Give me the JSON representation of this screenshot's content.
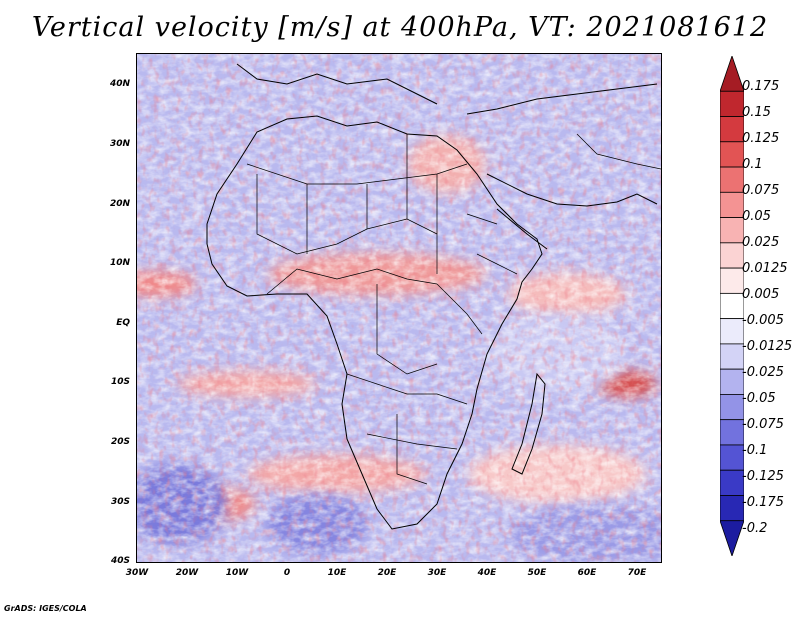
{
  "title": "Vertical velocity [m/s] at 400hPa, VT: 2021081612",
  "footer": "GrADS: IGES/COLA",
  "map": {
    "lat_range": [
      -40,
      45
    ],
    "lon_range": [
      -30,
      75
    ],
    "lat_ticks": [
      "40N",
      "30N",
      "20N",
      "10N",
      "EQ",
      "10S",
      "20S",
      "30S",
      "40S"
    ],
    "lon_ticks": [
      "30W",
      "20W",
      "10W",
      "0",
      "10E",
      "20E",
      "30E",
      "40E",
      "50E",
      "60E",
      "70E"
    ]
  },
  "colorbar": {
    "labels": [
      "0.175",
      "0.15",
      "0.125",
      "0.1",
      "0.075",
      "0.05",
      "0.025",
      "0.0125",
      "0.005",
      "-0.005",
      "-0.0125",
      "-0.025",
      "-0.05",
      "-0.075",
      "-0.1",
      "-0.125",
      "-0.175",
      "-0.2"
    ],
    "colors": [
      "#a51c24",
      "#c0272e",
      "#d43a3f",
      "#e25454",
      "#ec7272",
      "#f49393",
      "#f8b3b3",
      "#fbd3d3",
      "#fdeaea",
      "#ffffff",
      "#ebebfb",
      "#d3d3f6",
      "#b3b3ef",
      "#9393e7",
      "#7272de",
      "#5454d4",
      "#3a3ac6",
      "#2828b4",
      "#1c1ca0"
    ]
  }
}
